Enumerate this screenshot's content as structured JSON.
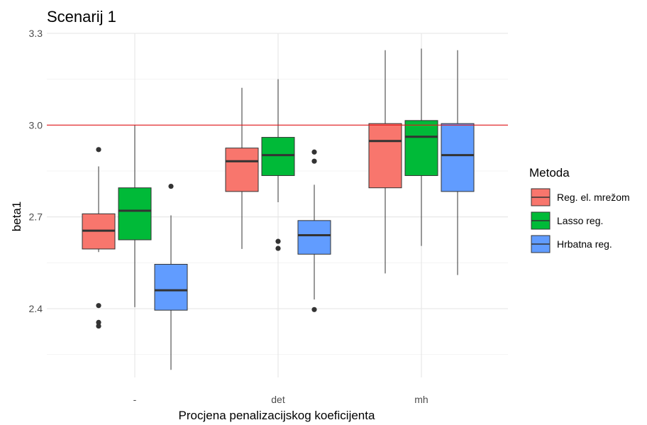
{
  "chart_data": {
    "type": "boxplot",
    "title": "Scenarij 1",
    "xlabel": "Procjena penalizacijskog koeficijenta",
    "ylabel": "beta1",
    "categories": [
      "-",
      "det",
      "mh"
    ],
    "ylim": [
      2.175,
      3.3
    ],
    "y_ticks": [
      2.4,
      2.7,
      3.0,
      3.3
    ],
    "y_tick_labels": [
      "2.4",
      "2.7",
      "3.0",
      "3.3"
    ],
    "reference_line": {
      "y": 3.0,
      "color": "#e41a1c"
    },
    "grid": true,
    "legend": {
      "title": "Metoda",
      "position": "right"
    },
    "series": [
      {
        "name": "Reg. el. mrežom",
        "color": "#F8766D",
        "boxes": [
          {
            "lower_whisker": 2.585,
            "q1": 2.595,
            "median": 2.655,
            "q3": 2.71,
            "upper_whisker": 2.865,
            "outliers": [
              2.92,
              2.41,
              2.355,
              2.343
            ]
          },
          {
            "lower_whisker": 2.595,
            "q1": 2.783,
            "median": 2.882,
            "q3": 2.925,
            "upper_whisker": 3.122,
            "outliers": []
          },
          {
            "lower_whisker": 2.515,
            "q1": 2.795,
            "median": 2.948,
            "q3": 3.005,
            "upper_whisker": 3.245,
            "outliers": []
          }
        ]
      },
      {
        "name": "Lasso reg.",
        "color": "#00BA38",
        "boxes": [
          {
            "lower_whisker": 2.405,
            "q1": 2.625,
            "median": 2.72,
            "q3": 2.795,
            "upper_whisker": 3.0,
            "outliers": []
          },
          {
            "lower_whisker": 2.748,
            "q1": 2.835,
            "median": 2.902,
            "q3": 2.96,
            "upper_whisker": 3.15,
            "outliers": [
              2.62,
              2.597
            ]
          },
          {
            "lower_whisker": 2.605,
            "q1": 2.835,
            "median": 2.962,
            "q3": 3.015,
            "upper_whisker": 3.25,
            "outliers": []
          }
        ]
      },
      {
        "name": "Hrbatna reg.",
        "color": "#619CFF",
        "boxes": [
          {
            "lower_whisker": 2.2,
            "q1": 2.395,
            "median": 2.46,
            "q3": 2.545,
            "upper_whisker": 2.705,
            "outliers": [
              2.8
            ]
          },
          {
            "lower_whisker": 2.43,
            "q1": 2.578,
            "median": 2.64,
            "q3": 2.688,
            "upper_whisker": 2.805,
            "outliers": [
              2.912,
              2.882,
              2.397
            ]
          },
          {
            "lower_whisker": 2.51,
            "q1": 2.783,
            "median": 2.902,
            "q3": 3.005,
            "upper_whisker": 3.245,
            "outliers": []
          }
        ]
      }
    ]
  }
}
